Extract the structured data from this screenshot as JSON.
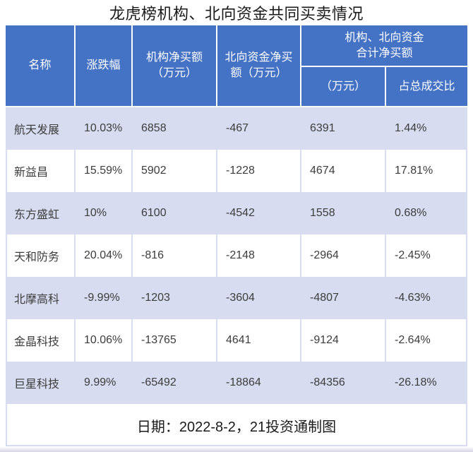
{
  "title": "龙虎榜机构、北向资金共同买卖情况",
  "headers": {
    "name": "名称",
    "change": "涨跌幅",
    "inst_net": "机构净买额\n（万元）",
    "north_net": "北向资金净买\n额（万元）",
    "combined_group": "机构、北向资金\n合计净买额",
    "combined_amount": "（万元）",
    "combined_pct": "占总成交比"
  },
  "footer": "日期：2022-8-2，21投资通制图",
  "colors": {
    "header_bg": "#4472C4",
    "header_text": "#FFFFFF",
    "band_row_bg": "#D8DCF0",
    "white_row_bg": "#FFFFFF",
    "body_text": "#3C3C3C",
    "title_text": "#1A1A1A",
    "shadow": "#D4D6E2"
  },
  "chart_data": {
    "type": "table",
    "title": "龙虎榜机构、北向资金共同买卖情况",
    "columns": [
      "名称",
      "涨跌幅",
      "机构净买额（万元）",
      "北向资金净买额（万元）",
      "机构、北向资金合计净买额（万元）",
      "机构、北向资金合计净买额占总成交比"
    ],
    "rows": [
      [
        "航天发展",
        "10.03%",
        "6858",
        "-467",
        "6391",
        "1.44%"
      ],
      [
        "新益昌",
        "15.59%",
        "5902",
        "-1228",
        "4674",
        "17.81%"
      ],
      [
        "东方盛虹",
        "10%",
        "6100",
        "-4542",
        "1558",
        "0.68%"
      ],
      [
        "天和防务",
        "20.04%",
        "-816",
        "-2148",
        "-2964",
        "-2.45%"
      ],
      [
        "北摩高科",
        "-9.99%",
        "-1203",
        "-3604",
        "-4807",
        "-4.63%"
      ],
      [
        "金晶科技",
        "10.06%",
        "-13765",
        "4641",
        "-9124",
        "-2.64%"
      ],
      [
        "巨星科技",
        "9.99%",
        "-65492",
        "-18864",
        "-84356",
        "-26.18%"
      ]
    ],
    "footnote": "日期：2022-8-2，21投资通制图",
    "layout": {
      "banded_rows": true,
      "band_pattern": "odd-rows-shaded",
      "header_merged_group_spans": [
        "机构、北向资金合计净买额 → （万元）+ 占总成交比"
      ]
    }
  }
}
